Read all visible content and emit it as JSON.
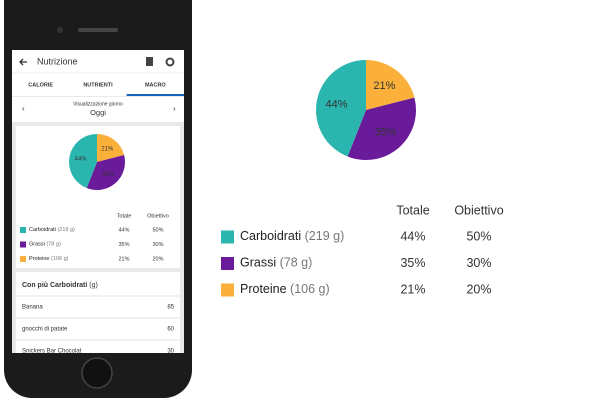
{
  "app_bar": {
    "title": "Nutrizione"
  },
  "tabs": [
    "CALORIE",
    "NUTRIENTI",
    "MACRO"
  ],
  "date_selector": {
    "caption": "Visualizzazione giorno",
    "value": "Oggi"
  },
  "macros": {
    "type": "pie",
    "headers": [
      "Totale",
      "Obiettivo"
    ],
    "names": [
      "Carboidrati",
      "Grassi",
      "Proteine"
    ],
    "amounts": [
      "(219 g)",
      "(78 g)",
      "(106 g)"
    ],
    "colors": [
      "#2ab5ae",
      "#6a1b9a",
      "#fbb03b"
    ],
    "values": [
      44,
      35,
      21
    ],
    "value_labels": [
      "44%",
      "35%",
      "21%"
    ],
    "goals": [
      "50%",
      "30%",
      "20%"
    ]
  },
  "foods_list": {
    "title": "Con più Carboidrati",
    "unit": "(g)",
    "items": [
      {
        "name": "Banana",
        "value": 85
      },
      {
        "name": "gnocchi di patate",
        "value": 60
      },
      {
        "name": "Snickers Bar Chocolat",
        "value": 30
      }
    ]
  }
}
